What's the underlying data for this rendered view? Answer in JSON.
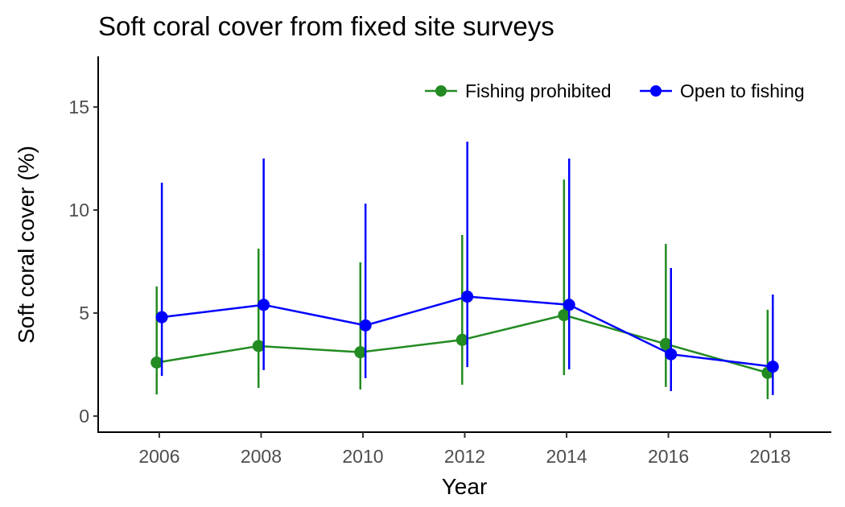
{
  "chart_data": {
    "type": "line",
    "title": "Soft coral cover from fixed site surveys",
    "xlabel": "Year",
    "ylabel": "Soft coral cover (%)",
    "x": [
      2006,
      2008,
      2010,
      2012,
      2014,
      2016,
      2018
    ],
    "xticks": [
      "2006",
      "2008",
      "2010",
      "2012",
      "2014",
      "2016",
      "2018"
    ],
    "yticks": [
      "0",
      "5",
      "10",
      "15"
    ],
    "ytick_values": [
      0,
      5,
      10,
      15
    ],
    "xlim": [
      2004.8,
      2019.2
    ],
    "ylim": [
      -0.78,
      17.46
    ],
    "grid": false,
    "legend_position": "top-right",
    "error_bars": true,
    "series": [
      {
        "name": "Fishing prohibited",
        "color": "#228b22",
        "values": [
          2.6,
          3.4,
          3.1,
          3.7,
          4.9,
          3.5,
          2.1
        ],
        "lower": [
          1.05,
          1.37,
          1.29,
          1.52,
          1.99,
          1.41,
          0.82
        ],
        "upper": [
          6.29,
          8.13,
          7.46,
          8.79,
          11.48,
          8.36,
          5.16
        ]
      },
      {
        "name": "Open to fishing",
        "color": "#0000ff",
        "values": [
          4.8,
          5.4,
          4.4,
          5.8,
          5.4,
          3.0,
          2.4
        ],
        "lower": [
          1.95,
          2.23,
          1.84,
          2.38,
          2.27,
          1.21,
          1.02
        ],
        "upper": [
          11.33,
          12.5,
          10.31,
          13.32,
          12.5,
          7.19,
          5.9
        ]
      }
    ]
  }
}
